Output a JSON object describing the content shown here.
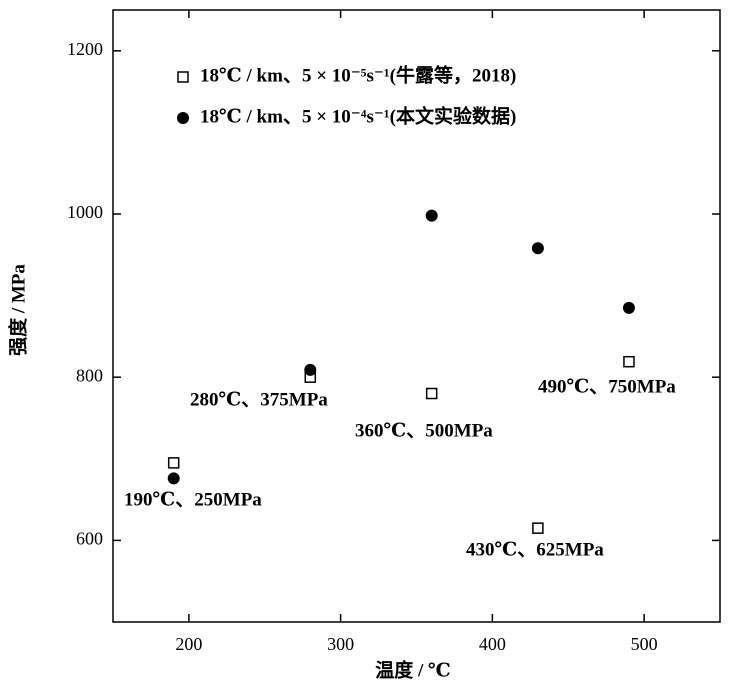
{
  "chart_data": {
    "type": "scatter",
    "xlabel": "温度 / ℃",
    "ylabel": "强度 / MPa",
    "xlim": [
      150,
      550
    ],
    "xticks": [
      200,
      300,
      400,
      500
    ],
    "ylim": [
      500,
      1250
    ],
    "yticks": [
      600,
      800,
      1000,
      1200
    ],
    "grid": false,
    "legend": "upper left",
    "series": [
      {
        "name": "18℃ / km、5 × 10⁻⁵s⁻¹(牛露等，2018)",
        "marker": "open-square",
        "color": "#000000",
        "x": [
          190,
          280,
          360,
          430,
          490
        ],
        "values": [
          695,
          800,
          780,
          615,
          819
        ]
      },
      {
        "name": "18℃ / km、5 × 10⁻⁴s⁻¹(本文实验数据)",
        "marker": "filled-circle",
        "color": "#000000",
        "x": [
          190,
          280,
          360,
          430,
          490
        ],
        "values": [
          676,
          809,
          998,
          958,
          885
        ]
      }
    ],
    "annotations": [
      "190℃、250MPa",
      "280℃、375MPa",
      "360℃、500MPa",
      "430℃、625MPa",
      "490℃、750MPa"
    ]
  }
}
